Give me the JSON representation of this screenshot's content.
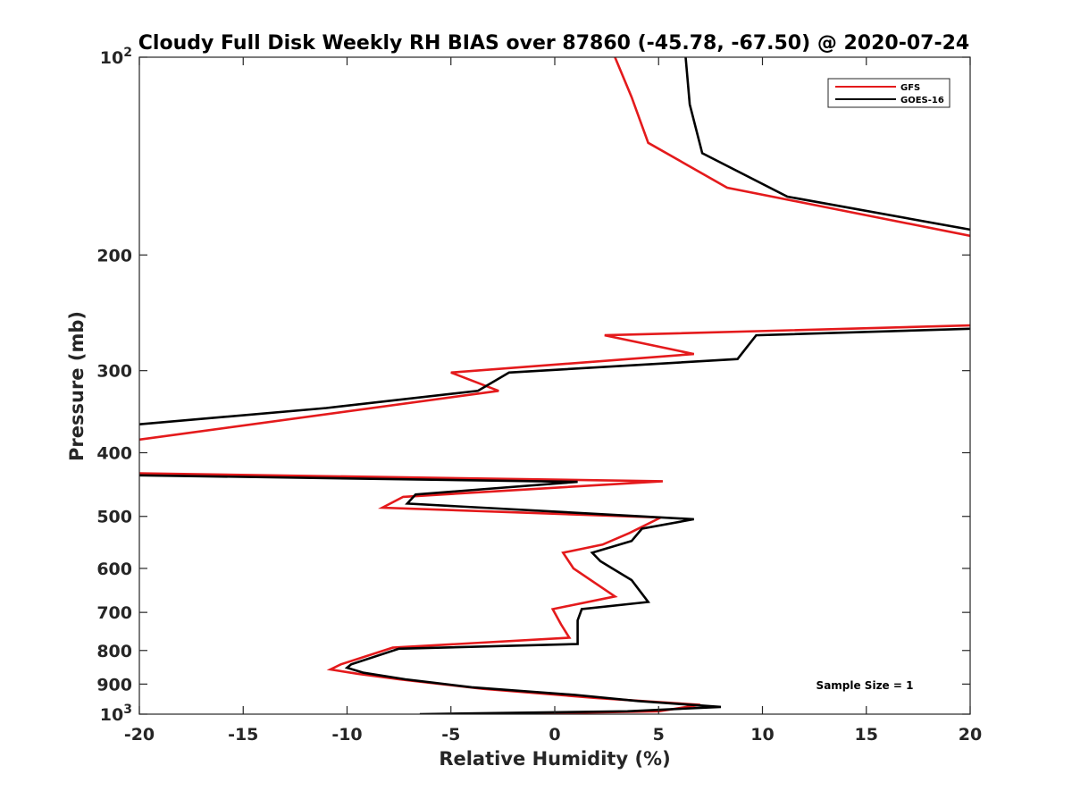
{
  "chart_data": {
    "type": "line",
    "title": "Cloudy Full Disk Weekly RH BIAS over 87860 (-45.78, -67.50) @ 2020-07-24",
    "xlabel": "Relative Humidity (%)",
    "ylabel": "Pressure (mb)",
    "xlim": [
      -20,
      20
    ],
    "ylim": [
      100,
      1000
    ],
    "y_scale": "log",
    "y_reversed": true,
    "grid": false,
    "legend_position": "top-right",
    "x_ticks": [
      "-20",
      "-15",
      "-10",
      "-5",
      "0",
      "5",
      "10",
      "15",
      "20"
    ],
    "y_ticks": [
      {
        "value": 100,
        "base": "10",
        "exp": "2"
      },
      {
        "value": 200,
        "label": "200"
      },
      {
        "value": 300,
        "label": "300"
      },
      {
        "value": 400,
        "label": "400"
      },
      {
        "value": 500,
        "label": "500"
      },
      {
        "value": 600,
        "label": "600"
      },
      {
        "value": 700,
        "label": "700"
      },
      {
        "value": 800,
        "label": "800"
      },
      {
        "value": 900,
        "label": "900"
      },
      {
        "value": 1000,
        "base": "10",
        "exp": "3"
      }
    ],
    "annotation": "Sample Size = 1",
    "series": [
      {
        "name": "GFS",
        "color": "#e41a1c",
        "points": [
          [
            2.9,
            100
          ],
          [
            3.7,
            115
          ],
          [
            4.5,
            135
          ],
          [
            8.3,
            158
          ],
          [
            20,
            187
          ],
          [
            null,
            null
          ],
          [
            20,
            256
          ],
          [
            2.4,
            265
          ],
          [
            6.7,
            283
          ],
          [
            -5,
            302
          ],
          [
            -2.7,
            322
          ],
          [
            -20,
            382
          ],
          [
            null,
            null
          ],
          [
            -20,
            430
          ],
          [
            5.2,
            442
          ],
          [
            -7.3,
            467
          ],
          [
            -8.3,
            485
          ],
          [
            5.1,
            502
          ],
          [
            3.6,
            530
          ],
          [
            2.3,
            552
          ],
          [
            0.4,
            568
          ],
          [
            0.9,
            600
          ],
          [
            2.9,
            662
          ],
          [
            -0.1,
            692
          ],
          [
            0.3,
            730
          ],
          [
            0.7,
            765
          ],
          [
            -7.8,
            792
          ],
          [
            -10.3,
            840
          ],
          [
            -10.8,
            855
          ],
          [
            -9.5,
            868
          ],
          [
            -7.5,
            885
          ],
          [
            -3.5,
            915
          ],
          [
            2,
            945
          ],
          [
            7,
            968
          ],
          [
            5,
            990
          ],
          [
            -3,
            1000
          ]
        ]
      },
      {
        "name": "GOES-16",
        "color": "#000000",
        "points": [
          [
            6.3,
            100
          ],
          [
            6.5,
            118
          ],
          [
            7.1,
            140
          ],
          [
            11.2,
            163
          ],
          [
            20,
            183
          ],
          [
            null,
            null
          ],
          [
            20,
            259
          ],
          [
            9.7,
            265
          ],
          [
            8.8,
            288
          ],
          [
            -2.2,
            302
          ],
          [
            -3.7,
            322
          ],
          [
            -11,
            342
          ],
          [
            -20,
            362
          ],
          [
            null,
            null
          ],
          [
            -20,
            433
          ],
          [
            1.1,
            443
          ],
          [
            -6.7,
            463
          ],
          [
            -7.1,
            478
          ],
          [
            6.7,
            505
          ],
          [
            4.2,
            522
          ],
          [
            3.7,
            545
          ],
          [
            1.8,
            568
          ],
          [
            2.2,
            585
          ],
          [
            3.7,
            625
          ],
          [
            4.5,
            675
          ],
          [
            1.3,
            692
          ],
          [
            1.1,
            720
          ],
          [
            1.1,
            782
          ],
          [
            -7.5,
            795
          ],
          [
            -9.8,
            840
          ],
          [
            -10,
            850
          ],
          [
            -9.2,
            865
          ],
          [
            -7.2,
            885
          ],
          [
            -4,
            910
          ],
          [
            1,
            935
          ],
          [
            4,
            955
          ],
          [
            8,
            975
          ],
          [
            3.5,
            990
          ],
          [
            -6.5,
            1000
          ]
        ]
      }
    ]
  }
}
